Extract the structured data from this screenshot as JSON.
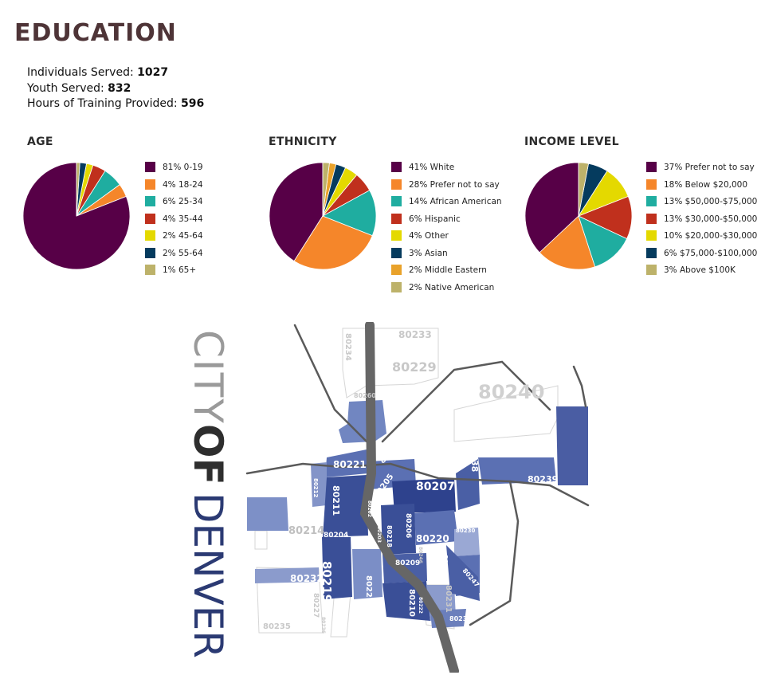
{
  "title": "EDUCATION",
  "stats": [
    {
      "label": "Individuals Served: ",
      "value": "1027"
    },
    {
      "label": "Youth Served: ",
      "value": "832"
    },
    {
      "label": "Hours of Training Provided: ",
      "value": "596"
    }
  ],
  "chart_data": [
    {
      "type": "pie",
      "title": "AGE",
      "labels": [
        "81% 0-19",
        "4% 18-24",
        "6% 25-34",
        "4% 35-44",
        "2% 45-64",
        "2% 55-64",
        "1% 65+"
      ],
      "values": [
        81,
        4,
        6,
        4,
        2,
        2,
        1
      ],
      "colors": [
        "#570047",
        "#f5862a",
        "#1fada0",
        "#c0301d",
        "#e4d900",
        "#053b5e",
        "#bdb26a"
      ],
      "legend": "right"
    },
    {
      "type": "pie",
      "title": "ETHNICITY",
      "labels": [
        "41% White",
        "28% Prefer not to say",
        "14% African American",
        "6% Hispanic",
        "4% Other",
        "3% Asian",
        "2% Middle Eastern",
        "2% Native American"
      ],
      "values": [
        41,
        28,
        14,
        6,
        4,
        3,
        2,
        2
      ],
      "colors": [
        "#570047",
        "#f5862a",
        "#1fada0",
        "#c0301d",
        "#e4d900",
        "#053b5e",
        "#e9a22a",
        "#bdb26a"
      ],
      "legend": "right"
    },
    {
      "type": "pie",
      "title": "INCOME LEVEL",
      "labels": [
        "37% Prefer not to say",
        "18% Below $20,000",
        "13% $50,000-$75,000",
        "13% $30,000-$50,000",
        "10% $20,000-$30,000",
        "6% $75,000-$100,000",
        "3% Above $100K"
      ],
      "values": [
        37,
        18,
        13,
        13,
        10,
        6,
        3
      ],
      "colors": [
        "#570047",
        "#f5862a",
        "#1fada0",
        "#c0301d",
        "#e4d900",
        "#053b5e",
        "#bdb26a"
      ],
      "legend": "right"
    }
  ],
  "map": {
    "brand_city": "CITY",
    "brand_of": "OF",
    "brand_denver": "DENVER",
    "brand_colors": {
      "city": "#9a9a9a",
      "of": "#2e2e2e",
      "denver": "#2b3a73"
    },
    "zip_labels": [
      "80233",
      "80229",
      "80234",
      "80240",
      "80260",
      "80221",
      "80216",
      "80238",
      "80239",
      "80207",
      "80205",
      "80211",
      "80212",
      "80219",
      "80214",
      "80204",
      "80206",
      "80218",
      "80203",
      "80220",
      "80230",
      "80209",
      "80224",
      "80247",
      "80232",
      "80223",
      "80210",
      "80231",
      "80227",
      "80235",
      "80236",
      "80237",
      "80222",
      "80246",
      "80202"
    ]
  }
}
